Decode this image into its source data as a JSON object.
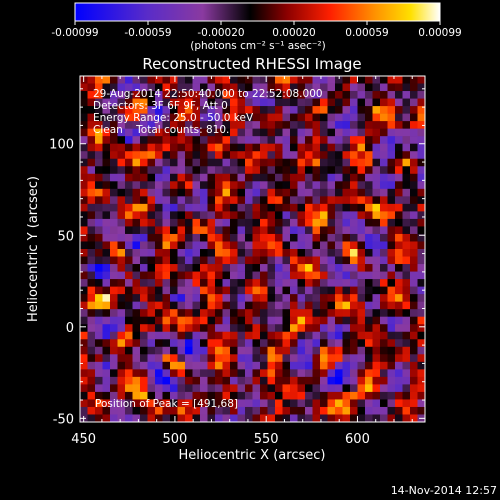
{
  "chart_data": {
    "type": "heatmap",
    "title": "Reconstructed RHESSI Image",
    "xlabel": "Heliocentric X (arcsec)",
    "ylabel": "Heliocentric Y (arcsec)",
    "xlim": [
      448,
      637
    ],
    "ylim": [
      -52,
      137
    ],
    "x_ticks": [
      450,
      500,
      550,
      600
    ],
    "y_ticks": [
      -50,
      0,
      50,
      100
    ],
    "colorbar": {
      "min": -0.00099,
      "max": 0.00099,
      "ticks": [
        "-0.00099",
        "-0.00059",
        "-0.00020",
        "0.00020",
        "0.00059",
        "0.00099"
      ],
      "unit_label": "(photons cm⁻² s⁻¹ asec⁻²)",
      "colors": [
        "#0000ff",
        "#5a2cc8",
        "#8a3aa0",
        "#000000",
        "#8b0000",
        "#ff2000",
        "#ff9000",
        "#ffe000",
        "#ffffff"
      ]
    },
    "grid": false,
    "legend": "none",
    "peak": {
      "x": 491,
      "y": 68
    }
  },
  "annotations": {
    "time_range": "29-Aug-2014 22:50:40.000 to 22:52:08.000",
    "detectors": "Detectors: 3F 6F 9F, Att 0",
    "energy": "Energy Range: 25.0 - 50.0 keV",
    "clean": "Clean    Total counts: 810.",
    "peak_label": "Position of Peak = [491,68]"
  },
  "footer": {
    "date": "14-Nov-2014 12:57"
  }
}
